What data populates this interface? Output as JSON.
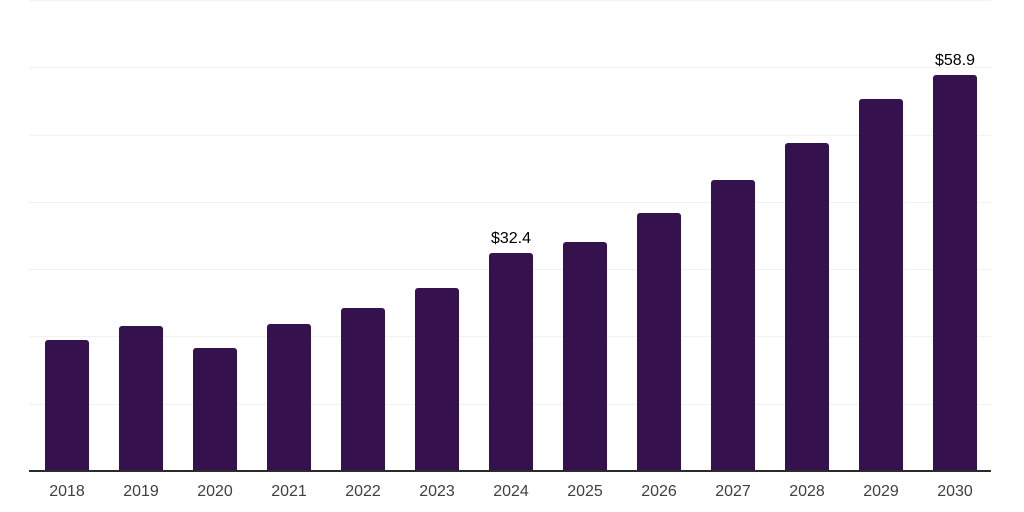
{
  "chart_data": {
    "type": "bar",
    "title": "",
    "xlabel": "",
    "ylabel": "",
    "categories": [
      "2018",
      "2019",
      "2020",
      "2021",
      "2022",
      "2023",
      "2024",
      "2025",
      "2026",
      "2027",
      "2028",
      "2029",
      "2030"
    ],
    "values": [
      19.5,
      21.6,
      18.3,
      21.8,
      24.2,
      27.2,
      32.4,
      34.1,
      38.3,
      43.3,
      48.8,
      55.3,
      58.9
    ],
    "value_labels": [
      "",
      "",
      "",
      "",
      "",
      "",
      "$32.4",
      "",
      "",
      "",
      "",
      "",
      "$58.9"
    ],
    "ylim": [
      0,
      70
    ],
    "gridline_step": 10,
    "grid": "horizontal-only",
    "legend": "none",
    "y_axis_labels_visible": false,
    "colors": {
      "bar": "#35124E",
      "gridline": "#F2F2F2",
      "axis_line": "#2B2B2B",
      "value_label": "#000000",
      "tick_label": "#3F3F3F",
      "background": "#FFFFFF"
    }
  }
}
